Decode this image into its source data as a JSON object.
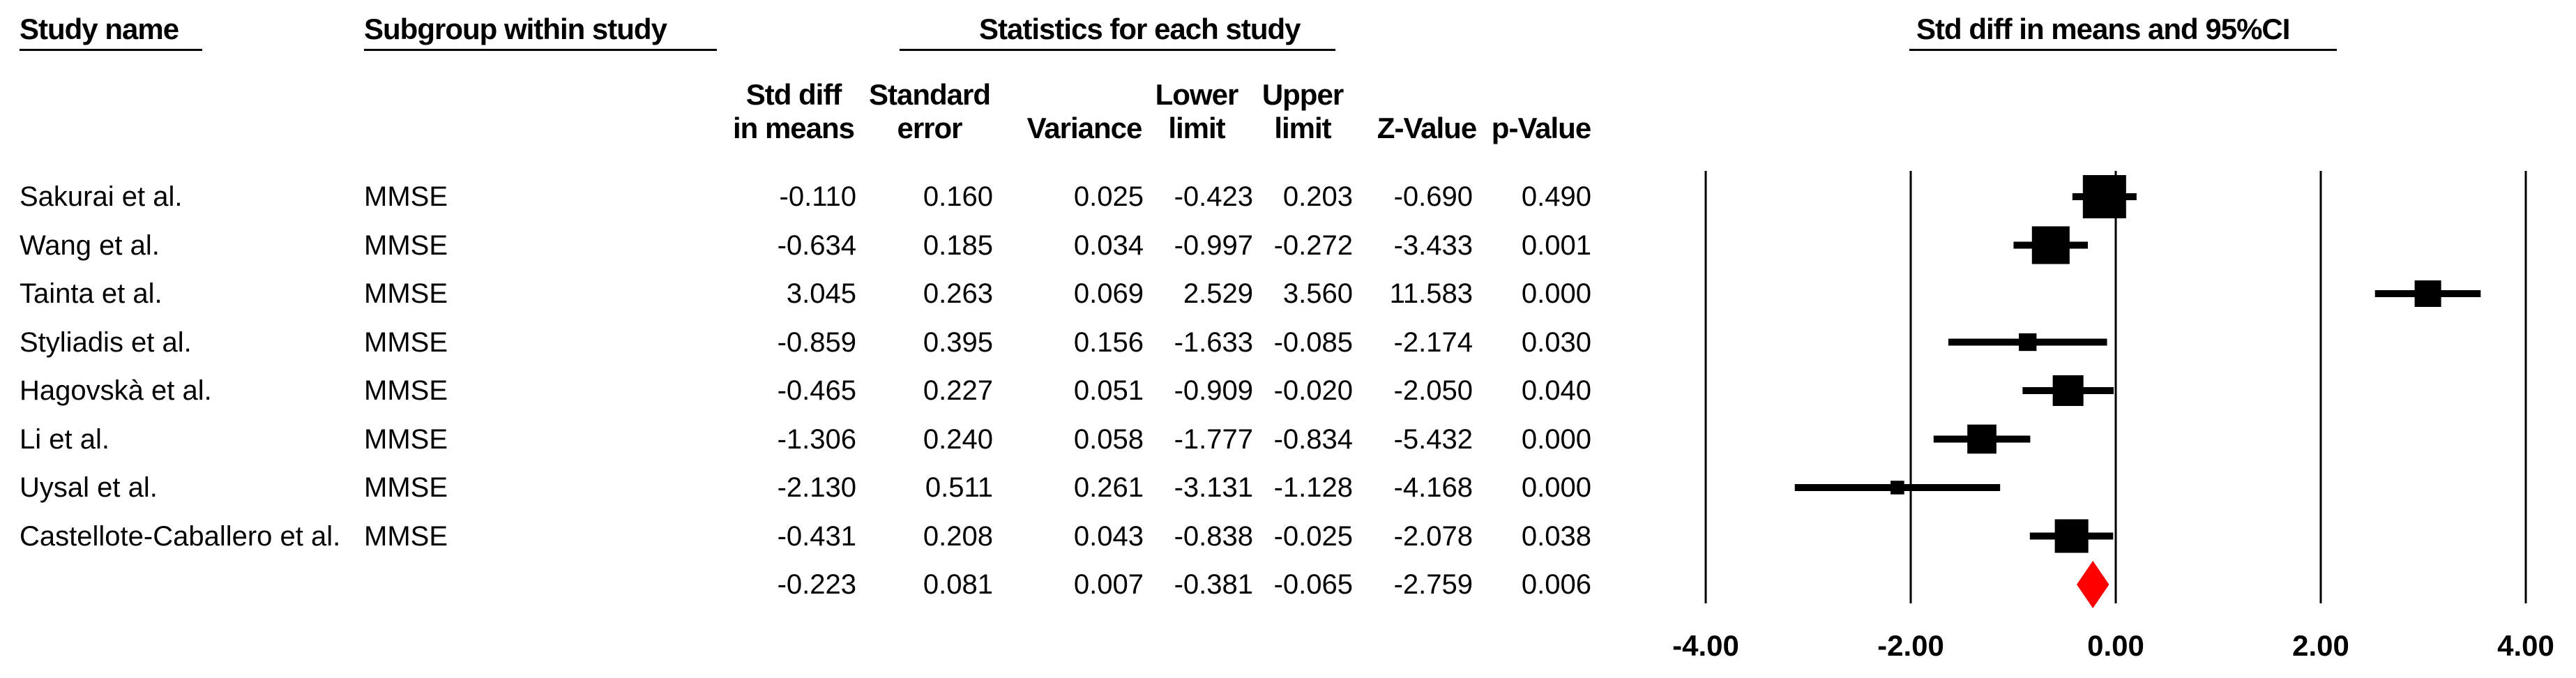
{
  "headers": {
    "study_name": "Study name",
    "subgroup": "Subgroup within study",
    "statistics": "Statistics for each study",
    "ci": "Std diff in means and 95%CI"
  },
  "columns": [
    {
      "l1": "Std diff",
      "l2": "in means"
    },
    {
      "l1": "Standard",
      "l2": "error"
    },
    {
      "l1": "",
      "l2": "Variance"
    },
    {
      "l1": "Lower",
      "l2": "limit"
    },
    {
      "l1": "Upper",
      "l2": "limit"
    },
    {
      "l1": "",
      "l2": "Z-Value"
    },
    {
      "l1": "",
      "l2": "p-Value"
    }
  ],
  "chart_data": {
    "type": "forest",
    "xlim": [
      -4.0,
      4.0
    ],
    "x_ticks": [
      "-4.00",
      "-2.00",
      "0.00",
      "2.00",
      "4.00"
    ],
    "x_tick_values": [
      -4,
      -2,
      0,
      2,
      4
    ],
    "marker_color": "#000000",
    "summary_color": "#ff0000",
    "rows": [
      {
        "study": "Sakurai et al.",
        "subgroup": "MMSE",
        "smd": "-0.110",
        "se": "0.160",
        "variance": "0.025",
        "lower": "-0.423",
        "upper": "0.203",
        "z": "-0.690",
        "p": "0.490"
      },
      {
        "study": "Wang et al.",
        "subgroup": "MMSE",
        "smd": "-0.634",
        "se": "0.185",
        "variance": "0.034",
        "lower": "-0.997",
        "upper": "-0.272",
        "z": "-3.433",
        "p": "0.001"
      },
      {
        "study": "Tainta et al.",
        "subgroup": "MMSE",
        "smd": "3.045",
        "se": "0.263",
        "variance": "0.069",
        "lower": "2.529",
        "upper": "3.560",
        "z": "11.583",
        "p": "0.000"
      },
      {
        "study": "Styliadis et al.",
        "subgroup": "MMSE",
        "smd": "-0.859",
        "se": "0.395",
        "variance": "0.156",
        "lower": "-1.633",
        "upper": "-0.085",
        "z": "-2.174",
        "p": "0.030"
      },
      {
        "study": "Hagovskà et al.",
        "subgroup": "MMSE",
        "smd": "-0.465",
        "se": "0.227",
        "variance": "0.051",
        "lower": "-0.909",
        "upper": "-0.020",
        "z": "-2.050",
        "p": "0.040"
      },
      {
        "study": "Li et al.",
        "subgroup": "MMSE",
        "smd": "-1.306",
        "se": "0.240",
        "variance": "0.058",
        "lower": "-1.777",
        "upper": "-0.834",
        "z": "-5.432",
        "p": "0.000"
      },
      {
        "study": "Uysal et al.",
        "subgroup": "MMSE",
        "smd": "-2.130",
        "se": "0.511",
        "variance": "0.261",
        "lower": "-3.131",
        "upper": "-1.128",
        "z": "-4.168",
        "p": "0.000"
      },
      {
        "study": "Castellote-Caballero et al.",
        "subgroup": "MMSE",
        "smd": "-0.431",
        "se": "0.208",
        "variance": "0.043",
        "lower": "-0.838",
        "upper": "-0.025",
        "z": "-2.078",
        "p": "0.038"
      }
    ],
    "summary": {
      "smd": "-0.223",
      "se": "0.081",
      "variance": "0.007",
      "lower": "-0.381",
      "upper": "-0.065",
      "z": "-2.759",
      "p": "0.006"
    }
  }
}
